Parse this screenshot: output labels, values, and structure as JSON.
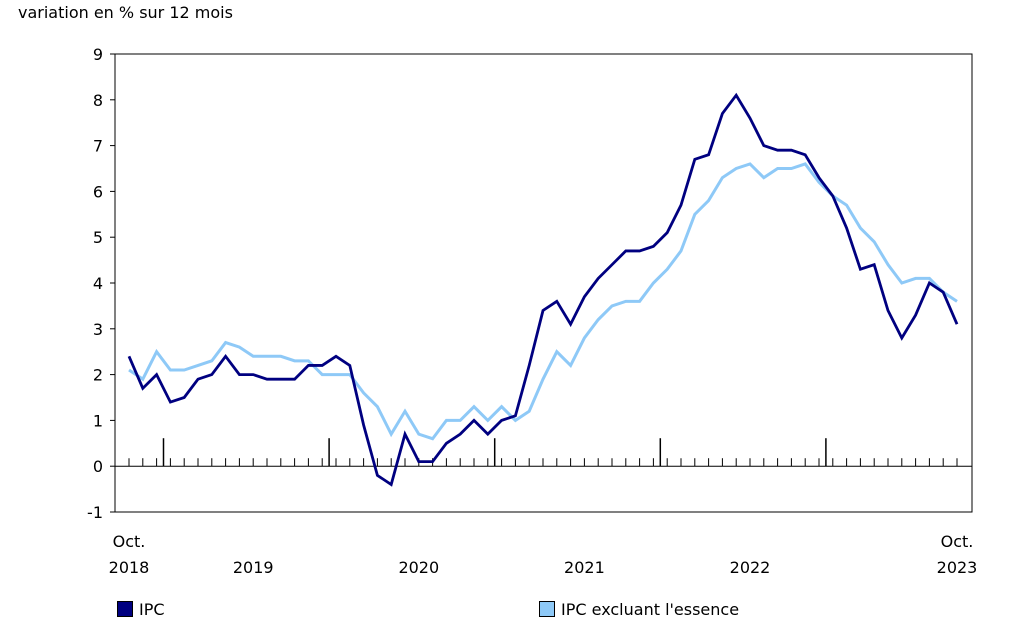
{
  "chart_data": {
    "type": "line",
    "ylabel": "variation en % sur 12 mois",
    "ylim": [
      -1,
      9
    ],
    "yticks": [
      -1,
      0,
      1,
      2,
      3,
      4,
      5,
      6,
      7,
      8,
      9
    ],
    "x_start": "Oct. 2018",
    "x_end": "Oct. 2023",
    "x_tick_labels": [
      {
        "label": "Oct.\n2018",
        "index": 0
      },
      {
        "label": "2019",
        "index": 9
      },
      {
        "label": "2020",
        "index": 21
      },
      {
        "label": "2021",
        "index": 33
      },
      {
        "label": "2022",
        "index": 45
      },
      {
        "label": "Oct.\n2023",
        "index": 60
      }
    ],
    "year_boundaries": [
      3,
      15,
      27,
      39,
      51
    ],
    "series": [
      {
        "name": "IPC",
        "color": "#000080",
        "values": [
          2.4,
          1.7,
          2.0,
          1.4,
          1.5,
          1.9,
          2.0,
          2.4,
          2.0,
          2.0,
          1.9,
          1.9,
          1.9,
          2.2,
          2.2,
          2.4,
          2.2,
          0.9,
          -0.2,
          -0.4,
          0.7,
          0.1,
          0.1,
          0.5,
          0.7,
          1.0,
          0.7,
          1.0,
          1.1,
          2.2,
          3.4,
          3.6,
          3.1,
          3.7,
          4.1,
          4.4,
          4.7,
          4.7,
          4.8,
          5.1,
          5.7,
          6.7,
          6.8,
          7.7,
          8.1,
          7.6,
          7.0,
          6.9,
          6.9,
          6.8,
          6.3,
          5.9,
          5.2,
          4.3,
          4.4,
          3.4,
          2.8,
          3.3,
          4.0,
          3.8,
          3.1
        ]
      },
      {
        "name": "IPC excluant l'essence",
        "color": "#8ec9f7",
        "values": [
          2.1,
          1.9,
          2.5,
          2.1,
          2.1,
          2.2,
          2.3,
          2.7,
          2.6,
          2.4,
          2.4,
          2.4,
          2.3,
          2.3,
          2.0,
          2.0,
          2.0,
          1.6,
          1.3,
          0.7,
          1.2,
          0.7,
          0.6,
          1.0,
          1.0,
          1.3,
          1.0,
          1.3,
          1.0,
          1.2,
          1.9,
          2.5,
          2.2,
          2.8,
          3.2,
          3.5,
          3.6,
          3.6,
          4.0,
          4.3,
          4.7,
          5.5,
          5.8,
          6.3,
          6.5,
          6.6,
          6.3,
          6.5,
          6.5,
          6.6,
          6.2,
          5.9,
          5.7,
          5.2,
          4.9,
          4.4,
          4.0,
          4.1,
          4.1,
          3.8,
          3.6
        ]
      }
    ]
  }
}
